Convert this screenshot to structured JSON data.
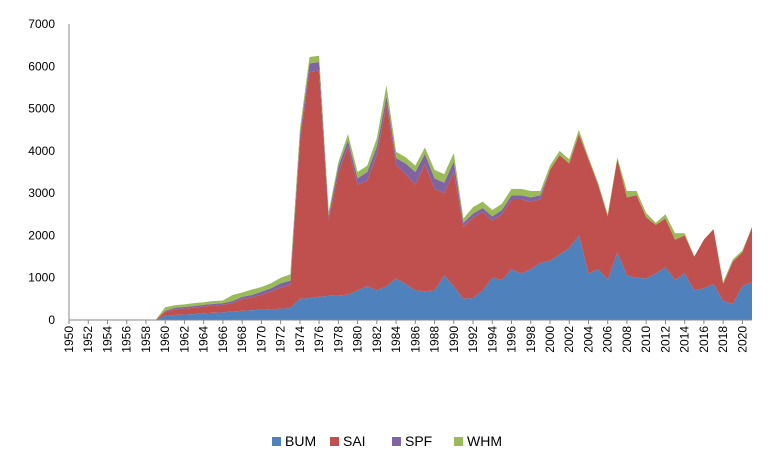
{
  "chart_data": {
    "type": "area",
    "stacked": true,
    "xlim": [
      1950,
      2021
    ],
    "ylim": [
      0,
      7000
    ],
    "yticks": [
      0,
      1000,
      2000,
      3000,
      4000,
      5000,
      6000,
      7000
    ],
    "xtick_step": 2,
    "x_tick_rotation": -90,
    "grid": false,
    "legend_position": "bottom",
    "x": [
      1950,
      1951,
      1952,
      1953,
      1954,
      1955,
      1956,
      1957,
      1958,
      1959,
      1960,
      1961,
      1962,
      1963,
      1964,
      1965,
      1966,
      1967,
      1968,
      1969,
      1970,
      1971,
      1972,
      1973,
      1974,
      1975,
      1976,
      1977,
      1978,
      1979,
      1980,
      1981,
      1982,
      1983,
      1984,
      1985,
      1986,
      1987,
      1988,
      1989,
      1990,
      1991,
      1992,
      1993,
      1994,
      1995,
      1996,
      1997,
      1998,
      1999,
      2000,
      2001,
      2002,
      2003,
      2004,
      2005,
      2006,
      2007,
      2008,
      2009,
      2010,
      2011,
      2012,
      2013,
      2014,
      2015,
      2016,
      2017,
      2018,
      2019,
      2020,
      2021
    ],
    "series": [
      {
        "name": "BUM",
        "color": "#4F81BD",
        "values": [
          0,
          0,
          0,
          0,
          0,
          0,
          0,
          0,
          0,
          0,
          100,
          120,
          130,
          140,
          160,
          170,
          180,
          200,
          220,
          230,
          250,
          240,
          270,
          280,
          500,
          520,
          550,
          570,
          580,
          600,
          700,
          800,
          700,
          800,
          980,
          850,
          700,
          680,
          700,
          1050,
          800,
          500,
          520,
          700,
          1000,
          950,
          1200,
          1100,
          1200,
          1350,
          1400,
          1550,
          1700,
          2000,
          1100,
          1200,
          950,
          1600,
          1050,
          1000,
          980,
          1100,
          1250,
          950,
          1100,
          700,
          750,
          850,
          450,
          380,
          800,
          900
        ]
      },
      {
        "name": "SAI",
        "color": "#C0504D",
        "values": [
          0,
          0,
          0,
          0,
          0,
          0,
          0,
          0,
          0,
          0,
          100,
          130,
          140,
          150,
          160,
          170,
          180,
          200,
          280,
          300,
          350,
          430,
          500,
          550,
          3700,
          5350,
          5350,
          1800,
          2900,
          3500,
          2500,
          2500,
          3200,
          4300,
          2700,
          2600,
          2500,
          3000,
          2400,
          1950,
          2700,
          1700,
          1900,
          1850,
          1350,
          1550,
          1650,
          1750,
          1600,
          1500,
          2150,
          2350,
          2000,
          2400,
          2700,
          2000,
          1500,
          2200,
          1850,
          1950,
          1450,
          1150,
          1150,
          950,
          900,
          800,
          1150,
          1300,
          400,
          1000,
          800,
          1300
        ]
      },
      {
        "name": "SPF",
        "color": "#8064A2",
        "values": [
          0,
          0,
          0,
          0,
          0,
          0,
          0,
          0,
          0,
          0,
          20,
          40,
          40,
          40,
          40,
          40,
          40,
          50,
          50,
          60,
          70,
          80,
          100,
          100,
          150,
          200,
          200,
          100,
          150,
          150,
          150,
          200,
          200,
          200,
          150,
          250,
          300,
          250,
          250,
          250,
          250,
          100,
          100,
          100,
          100,
          100,
          100,
          100,
          100,
          100,
          0,
          0,
          0,
          0,
          0,
          0,
          0,
          0,
          0,
          0,
          0,
          0,
          0,
          0,
          0,
          0,
          0,
          0,
          0,
          0,
          0,
          0
        ]
      },
      {
        "name": "WHM",
        "color": "#9BBB59",
        "values": [
          0,
          0,
          0,
          0,
          0,
          0,
          0,
          0,
          0,
          0,
          80,
          60,
          60,
          70,
          60,
          70,
          60,
          140,
          100,
          130,
          110,
          120,
          130,
          150,
          150,
          150,
          150,
          100,
          100,
          150,
          150,
          150,
          200,
          250,
          150,
          150,
          150,
          150,
          200,
          200,
          200,
          100,
          150,
          150,
          150,
          150,
          150,
          150,
          150,
          100,
          100,
          100,
          100,
          100,
          50,
          50,
          50,
          50,
          150,
          100,
          100,
          50,
          100,
          150,
          50,
          0,
          0,
          0,
          50,
          50,
          50,
          0
        ]
      }
    ]
  }
}
